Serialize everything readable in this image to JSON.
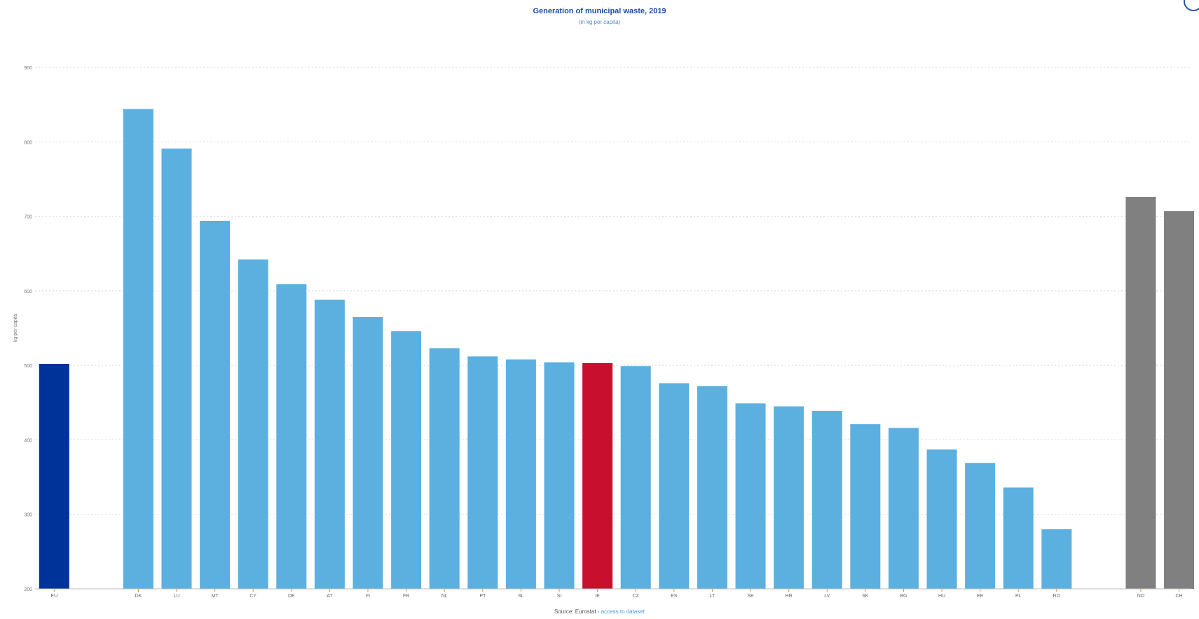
{
  "chart_data": {
    "type": "bar",
    "title": "Generation of municipal waste, 2019",
    "subtitle": "(in kg per capita)",
    "ylabel": "kg per capita",
    "xlabel": "",
    "ylim": [
      200,
      900
    ],
    "yticks": [
      200,
      300,
      400,
      500,
      600,
      700,
      800,
      900
    ],
    "grid": true,
    "categories": [
      "EU",
      "DK",
      "LU",
      "MT",
      "CY",
      "DE",
      "AT",
      "FI",
      "FR",
      "NL",
      "PT",
      "SL",
      "SI",
      "IE",
      "CZ",
      "ES",
      "LT",
      "SE",
      "HR",
      "LV",
      "SK",
      "BG",
      "HU",
      "EE",
      "PL",
      "RO",
      "NO",
      "CH"
    ],
    "values": [
      502,
      844,
      791,
      694,
      642,
      609,
      588,
      565,
      546,
      523,
      512,
      508,
      504,
      503,
      499,
      476,
      472,
      449,
      445,
      439,
      421,
      416,
      387,
      369,
      336,
      280,
      726,
      707
    ],
    "colors": {
      "eu": "#003399",
      "member": "#5cb0e0",
      "highlight": "#c8102e",
      "non_eu": "#808080"
    },
    "bar_groups": [
      "eu",
      "member",
      "member",
      "member",
      "member",
      "member",
      "member",
      "member",
      "member",
      "member",
      "member",
      "member",
      "member",
      "highlight",
      "member",
      "member",
      "member",
      "member",
      "member",
      "member",
      "member",
      "member",
      "member",
      "member",
      "member",
      "member",
      "non_eu",
      "non_eu"
    ]
  },
  "source": {
    "prefix": "Source: Eurostat",
    "separator": " - ",
    "link_text": "access to dataset"
  }
}
